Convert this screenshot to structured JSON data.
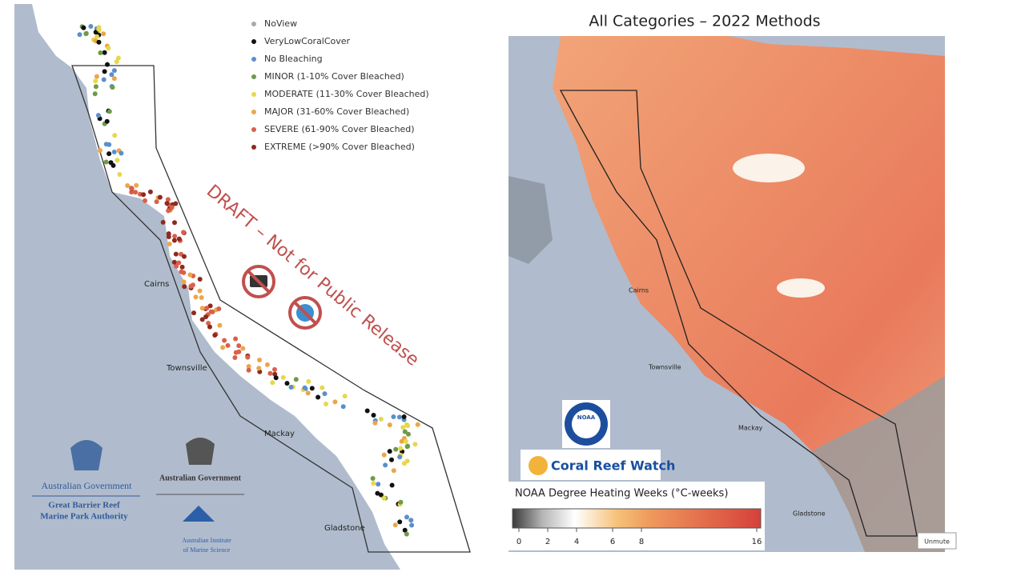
{
  "left_map": {
    "legend": [
      {
        "label": "NoView",
        "color": "#a8a8a8"
      },
      {
        "label": "VeryLowCoralCover",
        "color": "#111111"
      },
      {
        "label": "No Bleaching",
        "color": "#5b8fc9"
      },
      {
        "label": "MINOR (1-10% Cover Bleached)",
        "color": "#6f9a4a"
      },
      {
        "label": "MODERATE (11-30% Cover Bleached)",
        "color": "#e6d84c"
      },
      {
        "label": "MAJOR (31-60% Cover Bleached)",
        "color": "#eba64a"
      },
      {
        "label": "SEVERE (61-90% Cover Bleached)",
        "color": "#d9604a"
      },
      {
        "label": "EXTREME (>90% Cover Bleached)",
        "color": "#8e2a1e"
      }
    ],
    "towns": [
      "Cairns",
      "Townsville",
      "Mackay",
      "Gladstone"
    ],
    "watermark": "DRAFT – Not for Public Release",
    "logos": {
      "gbrmpa": [
        "Australian Government",
        "Great Barrier Reef",
        "Marine Park Authority"
      ],
      "aims": [
        "Australian Government",
        "Australian Institute",
        "of Marine Science"
      ]
    }
  },
  "right_map": {
    "title": "All Categories – 2022 Methods",
    "towns": [
      "Cairns",
      "Townsville",
      "Mackay",
      "Gladstone"
    ],
    "logos": {
      "noaa": "NOAA",
      "crw": "Coral Reef Watch"
    },
    "colorbar": {
      "title": "NOAA Degree Heating Weeks (°C-weeks)",
      "ticks": [
        0,
        2,
        4,
        6,
        8,
        16
      ]
    }
  },
  "unmute": "Unmute"
}
